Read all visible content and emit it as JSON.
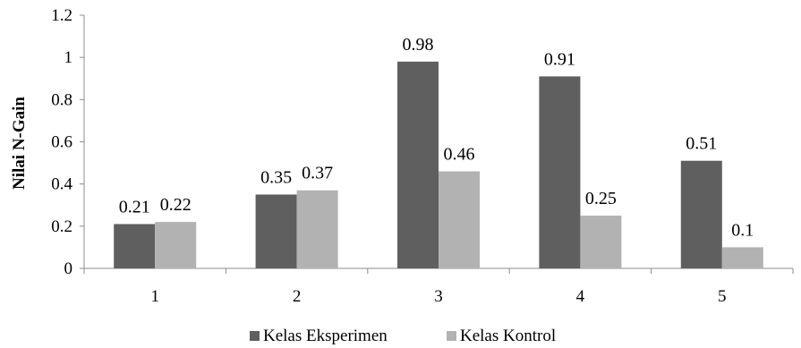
{
  "chart_data": {
    "type": "bar",
    "title": "",
    "xlabel": "",
    "ylabel": "Nilai N-Gain",
    "categories": [
      "1",
      "2",
      "3",
      "4",
      "5"
    ],
    "series": [
      {
        "name": "Kelas Eksperimen",
        "color": "#5f5f5f",
        "values": [
          0.21,
          0.35,
          0.98,
          0.91,
          0.51
        ]
      },
      {
        "name": "Kelas Kontrol",
        "color": "#b2b2b2",
        "values": [
          0.22,
          0.37,
          0.46,
          0.25,
          0.1
        ]
      }
    ],
    "ylim": [
      0,
      1.2
    ],
    "yticks": [
      "0",
      "0.2",
      "0.4",
      "0.6",
      "0.8",
      "1",
      "1.2"
    ],
    "grid": false,
    "legend": "bottom-center"
  }
}
